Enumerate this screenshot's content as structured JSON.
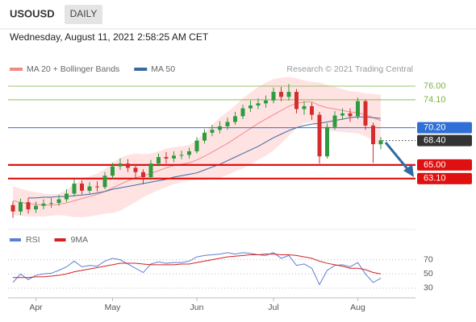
{
  "header": {
    "symbol": "USOUSD",
    "timeframe": "DAILY",
    "datetime": "Wednesday, August 11, 2021 2:58:25 AM CET"
  },
  "chart_data": [
    {
      "type": "candlestick",
      "credit": "Research © 2021 Trading Central",
      "categories": [
        null,
        null,
        null,
        "Apr",
        null,
        null,
        null,
        null,
        null,
        null,
        null,
        null,
        null,
        "May",
        null,
        null,
        null,
        null,
        null,
        null,
        null,
        null,
        null,
        null,
        "Jun",
        null,
        null,
        null,
        null,
        null,
        null,
        null,
        null,
        null,
        "Jul",
        null,
        null,
        null,
        null,
        null,
        null,
        null,
        null,
        null,
        null,
        "Aug",
        null,
        null,
        null
      ],
      "open": [
        59.4,
        58.5,
        59.8,
        58.8,
        59.3,
        59.6,
        59.7,
        60.2,
        61.0,
        62.4,
        61.4,
        62.0,
        61.9,
        63.5,
        64.8,
        65.2,
        64.6,
        64.0,
        63.3,
        65.2,
        66.1,
        65.9,
        66.3,
        66.4,
        66.9,
        68.4,
        69.5,
        69.9,
        70.4,
        71.0,
        71.8,
        72.9,
        73.3,
        73.6,
        74.0,
        75.2,
        74.5,
        75.2,
        72.8,
        73.2,
        72.0,
        66.2,
        70.3,
        71.9,
        72.2,
        71.8,
        73.9,
        70.5,
        67.9
      ],
      "high": [
        59.9,
        60.3,
        60.4,
        59.9,
        60.2,
        60.4,
        60.8,
        61.6,
        63.0,
        62.9,
        62.6,
        62.7,
        64.0,
        65.3,
        65.9,
        65.8,
        65.1,
        64.4,
        65.7,
        66.6,
        66.8,
        66.9,
        67.0,
        67.4,
        68.9,
        70.0,
        70.6,
        71.1,
        71.6,
        72.4,
        73.4,
        74.0,
        74.3,
        74.7,
        75.8,
        75.9,
        76.3,
        75.6,
        73.9,
        73.7,
        72.4,
        70.8,
        72.5,
        72.9,
        72.9,
        74.4,
        74.1,
        70.9,
        68.9
      ],
      "low": [
        57.6,
        58.0,
        58.2,
        58.3,
        58.8,
        59.0,
        59.3,
        59.8,
        60.6,
        60.9,
        61.0,
        61.3,
        61.6,
        63.1,
        64.3,
        64.0,
        63.2,
        62.3,
        62.9,
        64.8,
        65.2,
        65.4,
        65.8,
        65.9,
        66.6,
        68.0,
        69.0,
        69.4,
        69.9,
        70.6,
        71.4,
        72.4,
        72.8,
        73.0,
        73.6,
        73.9,
        74.0,
        72.2,
        72.0,
        71.3,
        65.2,
        65.9,
        69.9,
        71.3,
        71.0,
        71.4,
        69.9,
        65.3,
        67.2
      ],
      "close": [
        58.5,
        59.8,
        58.8,
        59.3,
        59.6,
        59.7,
        60.2,
        61.0,
        62.4,
        61.4,
        62.0,
        61.9,
        63.5,
        64.8,
        65.2,
        64.6,
        64.0,
        63.3,
        65.2,
        66.1,
        65.9,
        66.3,
        66.4,
        66.9,
        68.4,
        69.5,
        69.9,
        70.4,
        71.0,
        71.8,
        72.9,
        73.3,
        73.6,
        74.0,
        75.2,
        74.5,
        75.2,
        72.8,
        73.2,
        72.0,
        66.2,
        70.3,
        71.9,
        72.2,
        71.8,
        73.9,
        70.5,
        67.9,
        68.4
      ],
      "up_color": "#2e9b3e",
      "down_color": "#d42d2d",
      "series": [
        {
          "name": "MA 20 + Bollinger Bands",
          "color": "#f08a8a",
          "band_color": "#ffdcdc",
          "values": [
            60.0,
            59.8,
            59.6,
            59.5,
            59.4,
            59.4,
            59.5,
            59.7,
            60.0,
            60.3,
            60.6,
            60.9,
            61.3,
            61.8,
            62.3,
            62.8,
            63.2,
            63.5,
            63.8,
            64.2,
            64.6,
            64.9,
            65.1,
            65.3,
            65.7,
            66.2,
            66.8,
            67.4,
            68.0,
            68.7,
            69.4,
            70.1,
            70.8,
            71.4,
            72.0,
            72.6,
            73.2,
            73.6,
            73.8,
            73.8,
            73.3,
            73.0,
            72.8,
            72.6,
            72.4,
            72.3,
            72.0,
            71.6,
            71.2
          ],
          "upper": [
            62.0,
            61.7,
            61.4,
            61.2,
            61.0,
            60.9,
            61.0,
            61.5,
            62.3,
            62.9,
            63.4,
            63.8,
            64.4,
            65.3,
            66.0,
            66.4,
            66.6,
            66.5,
            66.6,
            66.9,
            67.3,
            67.5,
            67.6,
            67.8,
            68.5,
            69.5,
            70.6,
            71.6,
            72.4,
            73.3,
            74.3,
            75.1,
            75.9,
            76.5,
            77.0,
            77.2,
            77.3,
            77.1,
            76.8,
            76.6,
            76.5,
            76.2,
            75.9,
            75.6,
            75.3,
            75.2,
            75.0,
            74.9,
            74.8
          ],
          "lower": [
            58.0,
            57.9,
            57.8,
            57.8,
            57.8,
            57.9,
            58.0,
            57.9,
            57.7,
            57.7,
            57.8,
            58.0,
            58.2,
            58.3,
            58.6,
            59.2,
            59.8,
            60.5,
            61.0,
            61.5,
            61.9,
            62.3,
            62.6,
            62.8,
            62.9,
            62.9,
            63.0,
            63.2,
            63.6,
            64.1,
            64.5,
            65.1,
            65.7,
            66.3,
            67.0,
            68.0,
            69.1,
            70.1,
            70.8,
            71.0,
            70.1,
            69.8,
            69.7,
            69.6,
            69.5,
            69.4,
            69.0,
            68.3,
            67.6
          ]
        },
        {
          "name": "MA 50",
          "color": "#3b6aa0",
          "values": [
            null,
            null,
            60.4,
            60.4,
            60.5,
            60.5,
            60.6,
            60.6,
            60.7,
            60.8,
            60.9,
            61.1,
            61.3,
            61.6,
            61.8,
            62.0,
            62.2,
            62.4,
            62.6,
            62.8,
            63.0,
            63.3,
            63.5,
            63.7,
            63.9,
            64.3,
            64.7,
            65.1,
            65.6,
            66.1,
            66.6,
            67.1,
            67.6,
            68.2,
            68.8,
            69.3,
            69.8,
            70.2,
            70.5,
            70.7,
            70.8,
            71.0,
            71.2,
            71.4,
            71.6,
            71.7,
            71.7,
            71.6,
            71.5
          ]
        }
      ],
      "levels": [
        {
          "value": 76,
          "label": "76.00",
          "color": "#7cb342",
          "line": "thin",
          "boxed": false
        },
        {
          "value": 74.1,
          "label": "74.10",
          "color": "#7cb342",
          "line": "thin",
          "boxed": false
        },
        {
          "value": 70.2,
          "label": "70.20",
          "color": "#2f6fd6",
          "line": "solid",
          "boxed": true
        },
        {
          "value": 68.4,
          "label": "68.40",
          "color": "#333333",
          "line": "dotted",
          "boxed": true
        },
        {
          "value": 65,
          "label": "65.00",
          "color": "#e01010",
          "line": "thick",
          "boxed": true
        },
        {
          "value": 63.1,
          "label": "63.10",
          "color": "#e01010",
          "line": "thick",
          "boxed": true
        }
      ],
      "ylim": [
        56,
        77.35
      ]
    },
    {
      "type": "line",
      "series": [
        {
          "name": "RSI",
          "color": "#5b7fd6",
          "values": [
            38,
            50,
            42,
            48,
            50,
            51,
            55,
            60,
            68,
            60,
            62,
            61,
            68,
            72,
            70,
            64,
            58,
            52,
            64,
            67,
            65,
            66,
            66,
            68,
            74,
            76,
            77,
            78,
            80,
            78,
            80,
            79,
            77,
            76,
            80,
            72,
            76,
            62,
            64,
            58,
            35,
            55,
            62,
            63,
            60,
            66,
            50,
            38,
            44
          ]
        },
        {
          "name": "9MA",
          "color": "#d42020",
          "values": [
            45,
            45,
            45,
            46,
            46,
            47,
            48,
            50,
            53,
            55,
            57,
            59,
            61,
            63,
            65,
            65,
            65,
            64,
            63,
            63,
            63,
            63,
            64,
            64,
            66,
            68,
            70,
            72,
            74,
            75,
            76,
            77,
            77,
            78,
            78,
            77,
            77,
            76,
            74,
            72,
            68,
            65,
            63,
            61,
            58,
            58,
            56,
            52,
            50
          ]
        }
      ],
      "ylim": [
        22,
        90
      ],
      "yticks": [
        30,
        50,
        70
      ],
      "grid": true
    }
  ]
}
